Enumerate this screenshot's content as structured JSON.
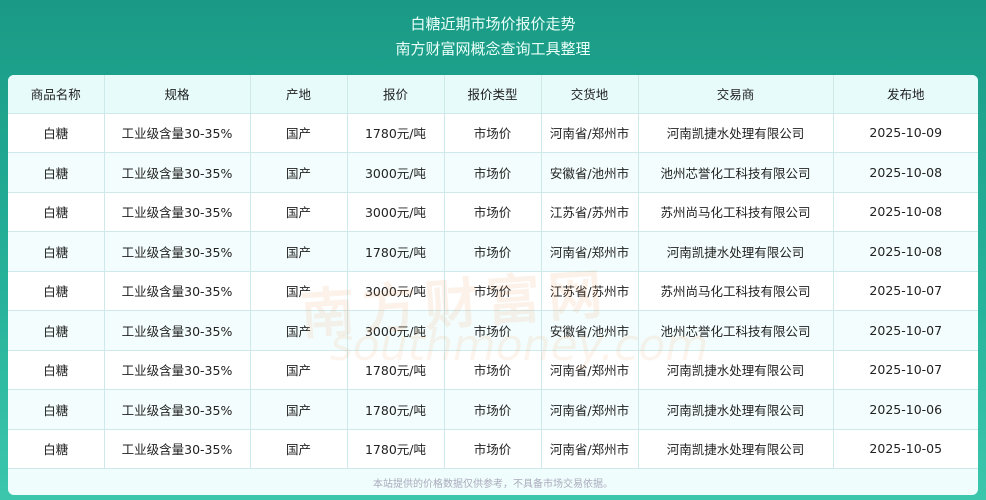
{
  "header": {
    "title": "白糖近期市场价报价走势",
    "subtitle": "南方财富网概念查询工具整理"
  },
  "table": {
    "columns": [
      "商品名称",
      "规格",
      "产地",
      "报价",
      "报价类型",
      "交货地",
      "交易商",
      "发布地"
    ],
    "rows": [
      [
        "白糖",
        "工业级含量30-35%",
        "国产",
        "1780元/吨",
        "市场价",
        "河南省/郑州市",
        "河南凯捷水处理有限公司",
        "2025-10-09"
      ],
      [
        "白糖",
        "工业级含量30-35%",
        "国产",
        "3000元/吨",
        "市场价",
        "安徽省/池州市",
        "池州芯誉化工科技有限公司",
        "2025-10-08"
      ],
      [
        "白糖",
        "工业级含量30-35%",
        "国产",
        "3000元/吨",
        "市场价",
        "江苏省/苏州市",
        "苏州尚马化工科技有限公司",
        "2025-10-08"
      ],
      [
        "白糖",
        "工业级含量30-35%",
        "国产",
        "1780元/吨",
        "市场价",
        "河南省/郑州市",
        "河南凯捷水处理有限公司",
        "2025-10-08"
      ],
      [
        "白糖",
        "工业级含量30-35%",
        "国产",
        "3000元/吨",
        "市场价",
        "江苏省/苏州市",
        "苏州尚马化工科技有限公司",
        "2025-10-07"
      ],
      [
        "白糖",
        "工业级含量30-35%",
        "国产",
        "3000元/吨",
        "市场价",
        "安徽省/池州市",
        "池州芯誉化工科技有限公司",
        "2025-10-07"
      ],
      [
        "白糖",
        "工业级含量30-35%",
        "国产",
        "1780元/吨",
        "市场价",
        "河南省/郑州市",
        "河南凯捷水处理有限公司",
        "2025-10-07"
      ],
      [
        "白糖",
        "工业级含量30-35%",
        "国产",
        "1780元/吨",
        "市场价",
        "河南省/郑州市",
        "河南凯捷水处理有限公司",
        "2025-10-06"
      ],
      [
        "白糖",
        "工业级含量30-35%",
        "国产",
        "1780元/吨",
        "市场价",
        "河南省/郑州市",
        "河南凯捷水处理有限公司",
        "2025-10-05"
      ]
    ]
  },
  "footer": {
    "note": "本站提供的价格数据仅供参考，不具备市场交易依据。"
  },
  "watermark": {
    "cn": "南方财富网",
    "en": "southmoney.com"
  },
  "colors": {
    "header_bg": "#1a9a86",
    "table_header_bg": "#e8fbfb"
  }
}
